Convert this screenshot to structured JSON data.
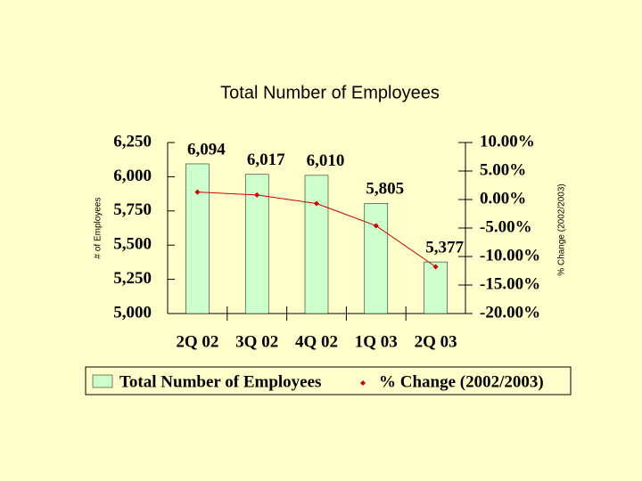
{
  "chart_data": {
    "type": "bar-line",
    "title": "Total Number of Employees",
    "y_label": "# of Employees",
    "y2_label": "% Change (2002/2003)",
    "categories": [
      "2Q 02",
      "3Q 02",
      "4Q 02",
      "1Q 03",
      "2Q 03"
    ],
    "series": [
      {
        "name": "Total Number of Employees",
        "type": "bar",
        "color": "#ccffcc",
        "values": [
          6094,
          6017,
          6010,
          5805,
          5377
        ],
        "value_labels": [
          "6,094",
          "6,017",
          "6,010",
          "5,805",
          "5,377"
        ]
      },
      {
        "name": "% Change (2002/2003)",
        "type": "line",
        "color": "#cc0000",
        "axis": "y2",
        "values": [
          1.3,
          0.8,
          -0.7,
          -4.6,
          -11.8
        ]
      }
    ],
    "ylim": [
      5000,
      6250
    ],
    "yticks": [
      {
        "value": 5000,
        "label": "5,000"
      },
      {
        "value": 5250,
        "label": "5,250"
      },
      {
        "value": 5500,
        "label": "5,500"
      },
      {
        "value": 5750,
        "label": "5,750"
      },
      {
        "value": 6000,
        "label": "6,000"
      },
      {
        "value": 6250,
        "label": "6,250"
      }
    ],
    "y2lim": [
      -20,
      10
    ],
    "y2ticks": [
      {
        "value": -20,
        "label": "-20.00%"
      },
      {
        "value": -15,
        "label": "-15.00%"
      },
      {
        "value": -10,
        "label": "-10.00%"
      },
      {
        "value": -5,
        "label": "-5.00%"
      },
      {
        "value": 0,
        "label": "0.00%"
      },
      {
        "value": 5,
        "label": "5.00%"
      },
      {
        "value": 10,
        "label": "10.00%"
      }
    ],
    "legend": "bottom"
  }
}
